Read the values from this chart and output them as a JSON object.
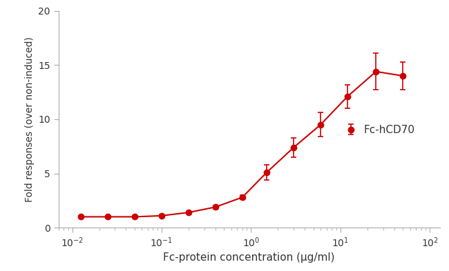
{
  "x": [
    0.0125,
    0.025,
    0.05,
    0.1,
    0.2,
    0.4,
    0.8,
    1.5,
    3,
    6,
    12,
    25,
    50
  ],
  "y": [
    1.0,
    1.0,
    1.0,
    1.1,
    1.4,
    1.9,
    2.8,
    5.1,
    7.4,
    9.5,
    12.1,
    14.4,
    14.0
  ],
  "yerr": [
    0.1,
    0.1,
    0.1,
    0.1,
    0.1,
    0.15,
    0.2,
    0.7,
    0.9,
    1.1,
    1.1,
    1.7,
    1.3
  ],
  "color": "#cc0000",
  "markersize": 6,
  "linewidth": 1.5,
  "legend_label": "Fc-hCD70",
  "xlabel": "Fc-protein concentration (µg/ml)",
  "ylabel": "Fold responses (over non-induced)",
  "xlim": [
    0.007,
    130
  ],
  "ylim": [
    0,
    20
  ],
  "yticks": [
    0,
    5,
    10,
    15,
    20
  ],
  "xticks": [
    0.01,
    0.1,
    1,
    10,
    100
  ],
  "background_color": "#ffffff",
  "capsize": 3,
  "elinewidth": 1.2,
  "spine_color": "#aaaaaa",
  "tick_color": "#aaaaaa",
  "label_color": "#333333",
  "font_size_ticks": 10,
  "font_size_labels": 11,
  "font_size_legend": 11
}
